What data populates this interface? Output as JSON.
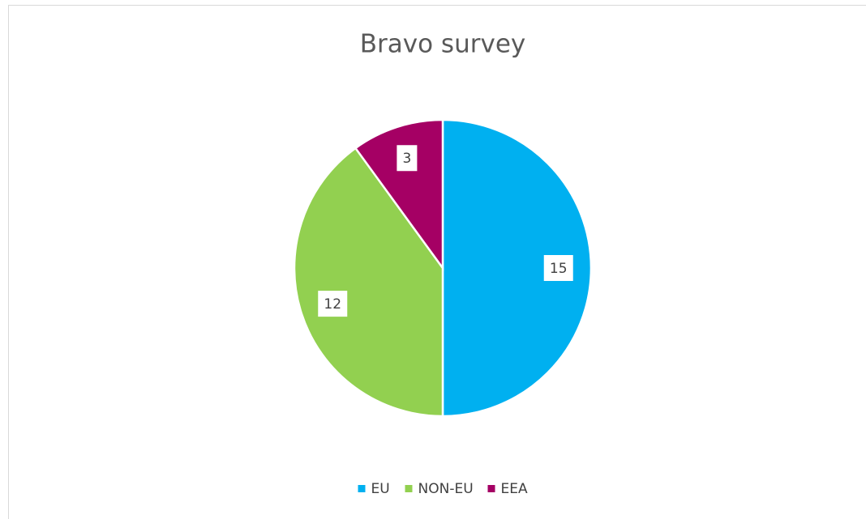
{
  "chart_data": {
    "type": "pie",
    "title": "Bravo survey",
    "categories": [
      "EU",
      "NON-EU",
      "EEA"
    ],
    "values": [
      15,
      12,
      3
    ],
    "colors": [
      "#00b0f0",
      "#92d050",
      "#a50064"
    ],
    "legend": "bottom"
  }
}
